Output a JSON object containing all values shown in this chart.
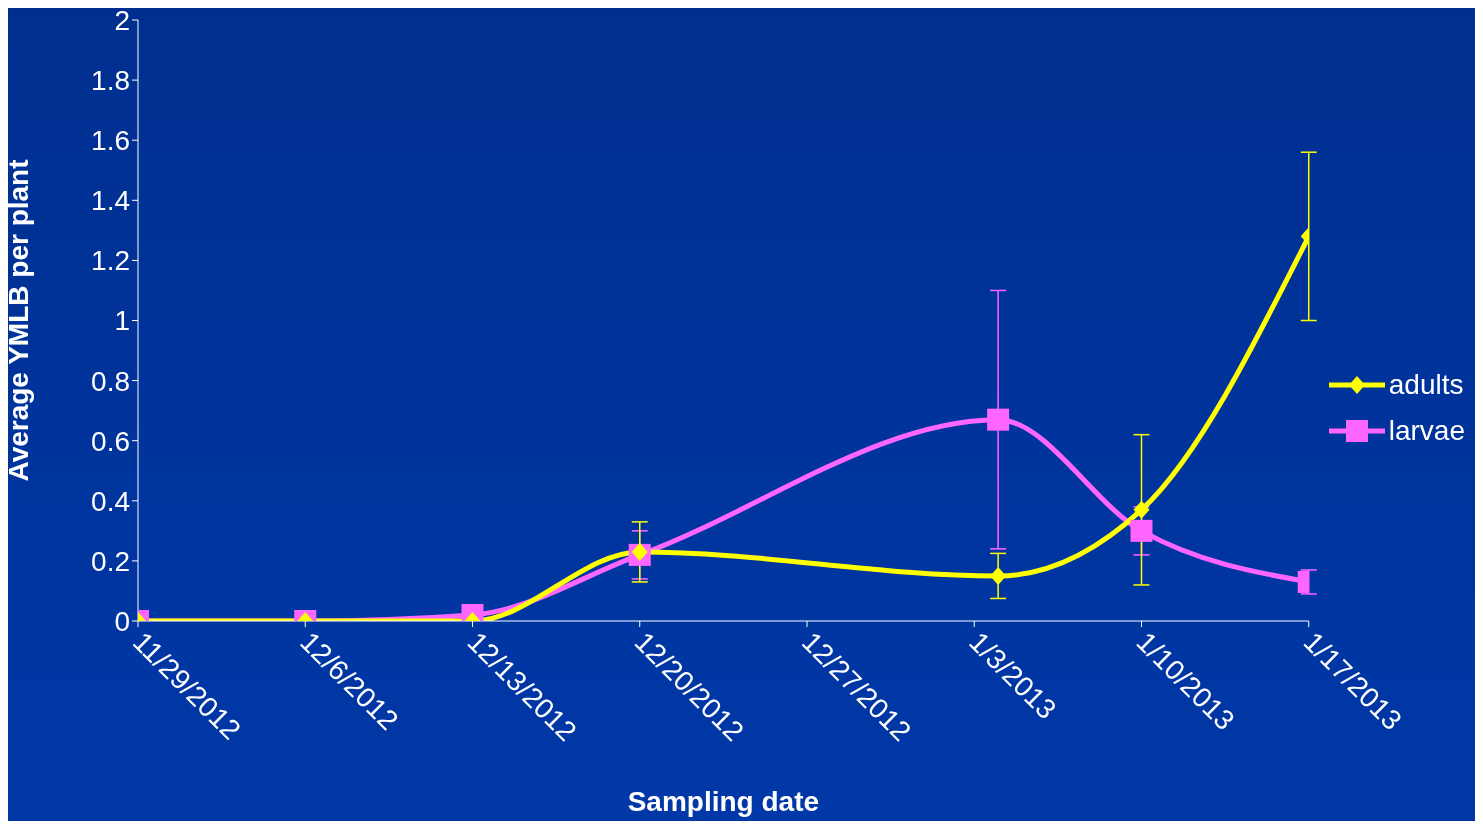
{
  "chart_data": {
    "type": "line",
    "xlabel": "Sampling date",
    "ylabel": "Average YMLB per plant",
    "x": [
      "2012-11-29",
      "2012-12-06",
      "2012-12-13",
      "2012-12-20",
      "2013-01-04",
      "2013-01-10",
      "2013-01-17"
    ],
    "series": [
      {
        "name": "adults",
        "color": "#ffff00",
        "marker": "diamond",
        "values": [
          0,
          0,
          0,
          0.23,
          0.15,
          0.37,
          1.28
        ],
        "errors": [
          null,
          null,
          null,
          0.1,
          0.075,
          0.25,
          0.28
        ]
      },
      {
        "name": "larvae",
        "color": "#ff66ff",
        "marker": "square",
        "values": [
          0,
          0,
          0.02,
          0.22,
          0.67,
          0.3,
          0.13
        ],
        "errors": [
          null,
          null,
          null,
          0.08,
          0.43,
          0.08,
          0.04
        ]
      }
    ],
    "xlim": [
      "2012-11-29",
      "2013-01-17"
    ],
    "xticks": [
      {
        "value": "2012-11-29",
        "label": "11/29/2012"
      },
      {
        "value": "2012-12-06",
        "label": "12/6/2012"
      },
      {
        "value": "2012-12-13",
        "label": "12/13/2012"
      },
      {
        "value": "2012-12-20",
        "label": "12/20/2012"
      },
      {
        "value": "2012-12-27",
        "label": "12/27/2012"
      },
      {
        "value": "2013-01-03",
        "label": "1/3/2013"
      },
      {
        "value": "2013-01-10",
        "label": "1/10/2013"
      },
      {
        "value": "2013-01-17",
        "label": "1/17/2013"
      }
    ],
    "ylim": [
      0,
      2
    ],
    "yticks": [
      0,
      0.2,
      0.4,
      0.6,
      0.8,
      1,
      1.2,
      1.4,
      1.6,
      1.8,
      2
    ],
    "grid": false,
    "legend": "right",
    "line_style": "solid"
  }
}
